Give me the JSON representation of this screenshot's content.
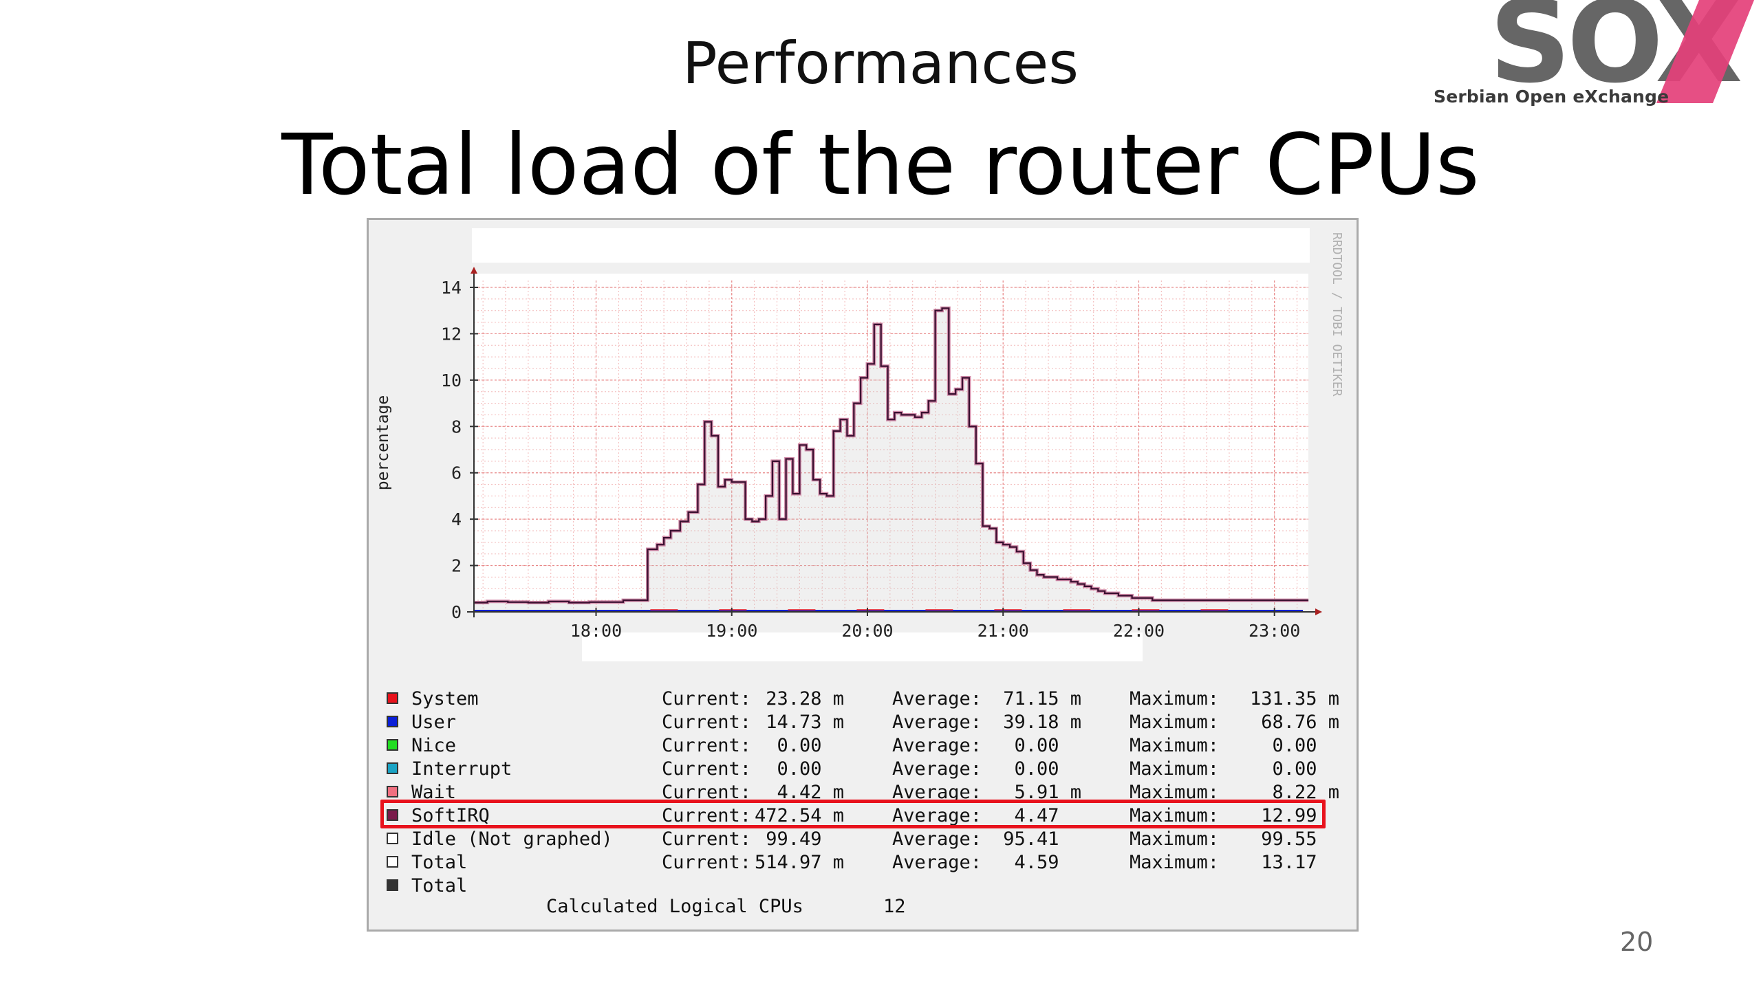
{
  "slide": {
    "heading": "Performances",
    "title": "Total load of the router CPUs",
    "page_number": "20"
  },
  "logo": {
    "text": "SOX",
    "tagline": "Serbian Open eXchange",
    "colors": {
      "dark": "#666666",
      "accent": "#e4407a"
    }
  },
  "highlight_color": "#e8121c",
  "chart_data": {
    "type": "area",
    "ylabel": "percentage",
    "ylim": [
      0,
      14
    ],
    "yticks": [
      0,
      2,
      4,
      6,
      8,
      10,
      12,
      14
    ],
    "xticks": [
      "18:00",
      "19:00",
      "20:00",
      "21:00",
      "22:00",
      "23:00"
    ],
    "x_hours_range": [
      17.1,
      23.25
    ],
    "watermark": "RRDTOOL / TOBI OETIKER",
    "grid": true,
    "series": [
      {
        "name": "Total",
        "color": "#3a1030",
        "x": [
          17.1,
          17.2,
          17.35,
          17.5,
          17.65,
          17.8,
          17.95,
          18.1,
          18.2,
          18.3,
          18.38,
          18.45,
          18.5,
          18.55,
          18.62,
          18.68,
          18.75,
          18.8,
          18.85,
          18.9,
          18.95,
          19.0,
          19.05,
          19.1,
          19.15,
          19.2,
          19.25,
          19.3,
          19.35,
          19.4,
          19.45,
          19.5,
          19.55,
          19.6,
          19.65,
          19.7,
          19.75,
          19.8,
          19.85,
          19.9,
          19.95,
          20.0,
          20.05,
          20.1,
          20.15,
          20.2,
          20.25,
          20.3,
          20.35,
          20.4,
          20.45,
          20.5,
          20.55,
          20.6,
          20.65,
          20.7,
          20.75,
          20.8,
          20.85,
          20.9,
          20.95,
          21.0,
          21.05,
          21.1,
          21.15,
          21.2,
          21.25,
          21.3,
          21.35,
          21.4,
          21.45,
          21.5,
          21.55,
          21.6,
          21.65,
          21.7,
          21.75,
          21.8,
          21.85,
          21.9,
          21.95,
          22.0,
          22.1,
          22.2,
          22.3,
          22.4,
          22.5,
          22.6,
          22.7,
          22.8,
          22.9,
          23.0,
          23.1,
          23.2
        ],
        "values": [
          0.4,
          0.45,
          0.42,
          0.4,
          0.45,
          0.4,
          0.42,
          0.42,
          0.5,
          0.5,
          2.7,
          2.9,
          3.2,
          3.5,
          3.9,
          4.3,
          5.5,
          8.2,
          7.6,
          5.4,
          5.7,
          5.6,
          5.6,
          4.0,
          3.9,
          4.0,
          5.0,
          6.5,
          4.0,
          6.6,
          5.1,
          7.2,
          7.0,
          5.7,
          5.1,
          5.0,
          7.8,
          8.3,
          7.6,
          9.0,
          10.1,
          10.7,
          12.4,
          10.6,
          8.3,
          8.6,
          8.5,
          8.5,
          8.4,
          8.6,
          9.1,
          13.0,
          13.1,
          9.4,
          9.6,
          10.1,
          8.0,
          6.4,
          3.7,
          3.6,
          3.0,
          2.9,
          2.8,
          2.6,
          2.1,
          1.8,
          1.6,
          1.5,
          1.5,
          1.4,
          1.4,
          1.3,
          1.2,
          1.1,
          1.0,
          0.9,
          0.8,
          0.8,
          0.7,
          0.7,
          0.6,
          0.6,
          0.5,
          0.5,
          0.5,
          0.5,
          0.5,
          0.5,
          0.5,
          0.5,
          0.5,
          0.5,
          0.5,
          0.5
        ]
      }
    ]
  },
  "legend": [
    {
      "name": "System",
      "color": "#e8121c",
      "cur_label": "Current:",
      "cur": "23.28 m",
      "avg_label": "Average:",
      "avg": "71.15 m",
      "max_label": "Maximum:",
      "max": "131.35 m"
    },
    {
      "name": "User",
      "color": "#0b1fd6",
      "cur_label": "Current:",
      "cur": "14.73 m",
      "avg_label": "Average:",
      "avg": "39.18 m",
      "max_label": "Maximum:",
      "max": "68.76 m"
    },
    {
      "name": "Nice",
      "color": "#22dd22",
      "cur_label": "Current:",
      "cur": "0.00  ",
      "avg_label": "Average:",
      "avg": "0.00  ",
      "max_label": "Maximum:",
      "max": "0.00  "
    },
    {
      "name": "Interrupt",
      "color": "#1aa3c4",
      "cur_label": "Current:",
      "cur": "0.00  ",
      "avg_label": "Average:",
      "avg": "0.00  ",
      "max_label": "Maximum:",
      "max": "0.00  "
    },
    {
      "name": "Wait",
      "color": "#f07080",
      "cur_label": "Current:",
      "cur": "4.42 m",
      "avg_label": "Average:",
      "avg": "5.91 m",
      "max_label": "Maximum:",
      "max": "8.22 m"
    },
    {
      "name": "SoftIRQ",
      "color": "#7a1a4a",
      "cur_label": "Current:",
      "cur": "472.54 m",
      "avg_label": "Average:",
      "avg": "4.47  ",
      "max_label": "Maximum:",
      "max": "12.99  "
    },
    {
      "name": "Idle (Not graphed)",
      "color": "#ffffff",
      "cur_label": "Current:",
      "cur": "99.49  ",
      "avg_label": "Average:",
      "avg": "95.41  ",
      "max_label": "Maximum:",
      "max": "99.55  "
    },
    {
      "name": "Total",
      "color": "#ffffff",
      "cur_label": "Current:",
      "cur": "514.97 m",
      "avg_label": "Average:",
      "avg": "4.59  ",
      "max_label": "Maximum:",
      "max": "13.17  "
    },
    {
      "name": "Total",
      "color": "#333333",
      "cur_label": "",
      "cur": "",
      "avg_label": "",
      "avg": "",
      "max_label": "",
      "max": ""
    }
  ],
  "calculated": {
    "label": "Calculated Logical CPUs",
    "value": "12"
  }
}
